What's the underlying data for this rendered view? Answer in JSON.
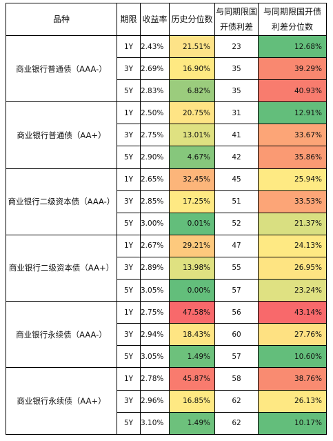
{
  "header": {
    "variety": "品种",
    "term": "期限",
    "yield": "收益率",
    "hist_pct": "历史分位数",
    "spread": [
      "与同期限国",
      "开债利差"
    ],
    "spread_pct": [
      "与同期限国开债",
      "利差分位数"
    ]
  },
  "groups": [
    {
      "name": "商业银行普通债（AAA-）",
      "rows": [
        {
          "term": "1Y",
          "yield": "2.43%",
          "hist_pct": "21.51%",
          "spread": "23",
          "spread_pct": "12.68%",
          "hist_color": "#fde388",
          "sp_color": "#63be7b"
        },
        {
          "term": "3Y",
          "yield": "2.69%",
          "hist_pct": "16.90%",
          "spread": "35",
          "spread_pct": "39.29%",
          "hist_color": "#fee982",
          "sp_color": "#f98870"
        },
        {
          "term": "5Y",
          "yield": "2.83%",
          "hist_pct": "6.82%",
          "spread": "35",
          "spread_pct": "40.93%",
          "hist_color": "#9bcc7d",
          "sp_color": "#f87c6e"
        }
      ]
    },
    {
      "name": "商业银行普通债（AA+）",
      "rows": [
        {
          "term": "1Y",
          "yield": "2.50%",
          "hist_pct": "20.75%",
          "spread": "31",
          "spread_pct": "12.91%",
          "hist_color": "#fee485",
          "sp_color": "#63be7b"
        },
        {
          "term": "3Y",
          "yield": "2.75%",
          "hist_pct": "13.01%",
          "spread": "41",
          "spread_pct": "33.67%",
          "hist_color": "#dfe181",
          "sp_color": "#fca577"
        },
        {
          "term": "5Y",
          "yield": "2.90%",
          "hist_pct": "4.67%",
          "spread": "42",
          "spread_pct": "35.86%",
          "hist_color": "#86c77c",
          "sp_color": "#fa9a73"
        }
      ]
    },
    {
      "name": "商业银行二级资本债（AAA-）",
      "rows": [
        {
          "term": "1Y",
          "yield": "2.65%",
          "hist_pct": "32.45%",
          "spread": "45",
          "spread_pct": "25.94%",
          "hist_color": "#fcb57a",
          "sp_color": "#feea83"
        },
        {
          "term": "3Y",
          "yield": "2.85%",
          "hist_pct": "17.25%",
          "spread": "51",
          "spread_pct": "33.53%",
          "hist_color": "#fee983",
          "sp_color": "#fca577"
        },
        {
          "term": "5Y",
          "yield": "3.00%",
          "hist_pct": "0.01%",
          "spread": "52",
          "spread_pct": "21.37%",
          "hist_color": "#63be7b",
          "sp_color": "#d9df81"
        }
      ]
    },
    {
      "name": "商业银行二级资本债（AA+）",
      "rows": [
        {
          "term": "1Y",
          "yield": "2.67%",
          "hist_pct": "29.21%",
          "spread": "47",
          "spread_pct": "24.13%",
          "hist_color": "#fdc97d",
          "sp_color": "#fee983"
        },
        {
          "term": "3Y",
          "yield": "2.89%",
          "hist_pct": "13.98%",
          "spread": "55",
          "spread_pct": "26.95%",
          "hist_color": "#dfe181",
          "sp_color": "#fee482"
        },
        {
          "term": "5Y",
          "yield": "3.05%",
          "hist_pct": "0.00%",
          "spread": "57",
          "spread_pct": "23.24%",
          "hist_color": "#63be7b",
          "sp_color": "#dfe182"
        }
      ]
    },
    {
      "name": "商业银行永续债（AAA-）",
      "rows": [
        {
          "term": "1Y",
          "yield": "2.75%",
          "hist_pct": "47.58%",
          "spread": "56",
          "spread_pct": "43.14%",
          "hist_color": "#f8696b",
          "sp_color": "#f8696b"
        },
        {
          "term": "3Y",
          "yield": "2.94%",
          "hist_pct": "18.43%",
          "spread": "60",
          "spread_pct": "27.76%",
          "hist_color": "#fee583",
          "sp_color": "#fee182"
        },
        {
          "term": "5Y",
          "yield": "3.05%",
          "hist_pct": "1.49%",
          "spread": "57",
          "spread_pct": "10.60%",
          "hist_color": "#6dc17c",
          "sp_color": "#63be7b"
        }
      ]
    },
    {
      "name": "商业银行永续债（AA+）",
      "rows": [
        {
          "term": "1Y",
          "yield": "2.78%",
          "hist_pct": "45.87%",
          "spread": "58",
          "spread_pct": "38.76%",
          "hist_color": "#f97b6e",
          "sp_color": "#f98b71"
        },
        {
          "term": "3Y",
          "yield": "2.96%",
          "hist_pct": "16.85%",
          "spread": "62",
          "spread_pct": "26.13%",
          "hist_color": "#fee983",
          "sp_color": "#fee883"
        },
        {
          "term": "5Y",
          "yield": "3.10%",
          "hist_pct": "1.49%",
          "spread": "62",
          "spread_pct": "10.17%",
          "hist_color": "#6dc17c",
          "sp_color": "#63be7b"
        }
      ]
    }
  ]
}
